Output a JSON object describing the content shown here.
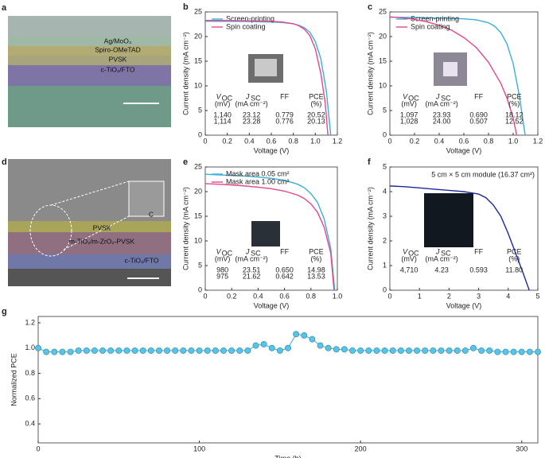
{
  "images": [
    {
      "letter": "a",
      "labels": [
        "Ag/MoO₃",
        "Spiro-OMeTAD",
        "PVSK",
        "c-TiO₂/FTO"
      ]
    },
    {
      "letter": "d",
      "labels": [
        "C",
        "PVSK",
        "m-TiO₂/m-ZrO₂-PVSK",
        "c-TiO₂/FTO"
      ]
    }
  ],
  "chart_data": [
    {
      "letter": "b",
      "type": "line",
      "xlabel": "Voltage (V)",
      "ylabel": "Current density (mA cm⁻²)",
      "xlim": [
        0,
        1.2
      ],
      "ylim": [
        0,
        25
      ],
      "xticks": [
        0,
        0.2,
        0.4,
        0.6,
        0.8,
        {
          "value": 1,
          "label": "1.0"
        },
        1.2
      ],
      "yticks": [
        0,
        5,
        10,
        15,
        20,
        25
      ],
      "series": [
        {
          "name": "Screen-printing",
          "color": "#3ab0d9",
          "x": [
            0,
            0.1,
            0.2,
            0.3,
            0.4,
            0.5,
            0.6,
            0.7,
            0.8,
            0.85,
            0.9,
            0.95,
            1.0,
            1.05,
            1.1,
            1.14
          ],
          "values": [
            23.12,
            23.1,
            23.1,
            23.08,
            23.05,
            23.0,
            22.95,
            22.85,
            22.6,
            22.3,
            21.8,
            20.9,
            19.0,
            15.5,
            9,
            0
          ]
        },
        {
          "name": "Spin coating",
          "color": "#e5468e",
          "x": [
            0,
            0.1,
            0.2,
            0.3,
            0.4,
            0.5,
            0.6,
            0.7,
            0.8,
            0.85,
            0.9,
            0.95,
            1.0,
            1.05,
            1.09,
            1.114
          ],
          "values": [
            23.28,
            23.27,
            23.25,
            23.22,
            23.2,
            23.15,
            23.1,
            22.95,
            22.6,
            22.2,
            21.5,
            20.2,
            17.5,
            12.5,
            6.5,
            0
          ]
        }
      ],
      "table": {
        "columns": [
          {
            "name": "V",
            "sub": "OC",
            "unit": "(mV)"
          },
          {
            "name": "J",
            "sub": "SC",
            "unit": "(mA cm⁻²)"
          },
          {
            "name": "FF"
          },
          {
            "name": "PCE",
            "unit": "(%)"
          }
        ],
        "rows": [
          {
            "color": "#3ab0d9",
            "cells": [
              "1,140",
              "23.12",
              "0.779",
              "20.52"
            ]
          },
          {
            "color": "#e5468e",
            "cells": [
              "1,114",
              "23.28",
              "0.776",
              "20.13"
            ]
          }
        ]
      }
    },
    {
      "letter": "c",
      "type": "line",
      "xlabel": "Voltage (V)",
      "ylabel": "Current density (mA cm⁻²)",
      "xlim": [
        0,
        1.2
      ],
      "ylim": [
        0,
        25
      ],
      "xticks": [
        0,
        0.2,
        0.4,
        0.6,
        0.8,
        {
          "value": 1,
          "label": "1.0"
        },
        1.2
      ],
      "yticks": [
        0,
        5,
        10,
        15,
        20,
        25
      ],
      "series": [
        {
          "name": "Screen-printing",
          "color": "#3ab0d9",
          "x": [
            0,
            0.1,
            0.2,
            0.3,
            0.4,
            0.5,
            0.6,
            0.7,
            0.8,
            0.85,
            0.9,
            0.95,
            1.0,
            1.05,
            1.097
          ],
          "values": [
            23.93,
            23.9,
            23.85,
            23.8,
            23.75,
            23.7,
            23.6,
            23.4,
            22.8,
            22.1,
            20.8,
            18.5,
            14.5,
            8,
            0
          ]
        },
        {
          "name": "Spin coating",
          "color": "#e5468e",
          "x": [
            0,
            0.1,
            0.2,
            0.3,
            0.4,
            0.5,
            0.6,
            0.7,
            0.8,
            0.9,
            0.95,
            1.0,
            1.028
          ],
          "values": [
            24.0,
            23.8,
            23.5,
            23.0,
            22.3,
            21.3,
            19.8,
            17.8,
            14.8,
            10.5,
            7.5,
            3.5,
            0
          ]
        }
      ],
      "table": {
        "columns": [
          {
            "name": "V",
            "sub": "OC",
            "unit": "(mV)"
          },
          {
            "name": "J",
            "sub": "SC",
            "unit": "(mA cm⁻²)"
          },
          {
            "name": "FF"
          },
          {
            "name": "PCE",
            "unit": "(%)"
          }
        ],
        "rows": [
          {
            "color": "#3ab0d9",
            "cells": [
              "1,097",
              "23.93",
              "0.690",
              "18.12"
            ]
          },
          {
            "color": "#e5468e",
            "cells": [
              "1,028",
              "24.00",
              "0.507",
              "12.52"
            ]
          }
        ]
      }
    },
    {
      "letter": "e",
      "type": "line",
      "xlabel": "Voltage (V)",
      "ylabel": "Current density (mA cm⁻²)",
      "xlim": [
        0,
        1.0
      ],
      "ylim": [
        0,
        25
      ],
      "xticks": [
        0,
        0.2,
        0.4,
        0.6,
        0.8,
        {
          "value": 1,
          "label": "1.0"
        }
      ],
      "yticks": [
        0,
        5,
        10,
        15,
        20,
        25
      ],
      "series": [
        {
          "name": "Mask area 0.05 cm²",
          "color": "#3ab0d9",
          "x": [
            0,
            0.1,
            0.2,
            0.3,
            0.4,
            0.5,
            0.6,
            0.7,
            0.75,
            0.8,
            0.85,
            0.9,
            0.95,
            0.98
          ],
          "values": [
            23.51,
            23.4,
            23.3,
            23.15,
            22.95,
            22.7,
            22.3,
            21.5,
            20.8,
            19.6,
            17.8,
            14.5,
            8.5,
            0
          ]
        },
        {
          "name": "Mask area 1.00 cm²",
          "color": "#e5468e",
          "x": [
            0,
            0.1,
            0.2,
            0.3,
            0.4,
            0.5,
            0.6,
            0.7,
            0.75,
            0.8,
            0.85,
            0.9,
            0.95,
            0.975
          ],
          "values": [
            21.62,
            21.5,
            21.35,
            21.15,
            20.9,
            20.6,
            20.1,
            19.3,
            18.6,
            17.5,
            15.8,
            12.8,
            7.5,
            0
          ]
        }
      ],
      "table": {
        "columns": [
          {
            "name": "V",
            "sub": "OC",
            "unit": "(mV)"
          },
          {
            "name": "J",
            "sub": "SC",
            "unit": "(mA cm⁻²)"
          },
          {
            "name": "FF"
          },
          {
            "name": "PCE",
            "unit": "(%)"
          }
        ],
        "rows": [
          {
            "color": "#3ab0d9",
            "cells": [
              "980",
              "23.51",
              "0.650",
              "14.98"
            ]
          },
          {
            "color": "#e5468e",
            "cells": [
              "975",
              "21.62",
              "0.642",
              "13.53"
            ]
          }
        ]
      }
    },
    {
      "letter": "f",
      "type": "line",
      "xlabel": "Voltage (V)",
      "ylabel": "Current density (mA cm⁻²)",
      "annotation": "5 cm × 5 cm module (16.37 cm²)",
      "xlim": [
        0,
        5
      ],
      "ylim": [
        0,
        5
      ],
      "xticks": [
        0,
        1,
        2,
        3,
        4,
        5
      ],
      "yticks": [
        0,
        1,
        2,
        3,
        4,
        5
      ],
      "series": [
        {
          "color": "#1c2a9a",
          "x": [
            0,
            0.5,
            1,
            1.5,
            2,
            2.5,
            3,
            3.25,
            3.5,
            3.75,
            4,
            4.25,
            4.5,
            4.71
          ],
          "values": [
            4.23,
            4.2,
            4.15,
            4.1,
            4.05,
            4.0,
            3.9,
            3.75,
            3.45,
            3.0,
            2.3,
            1.5,
            0.7,
            0
          ]
        }
      ],
      "table": {
        "columns": [
          {
            "name": "V",
            "sub": "OC",
            "unit": "(mV)"
          },
          {
            "name": "J",
            "sub": "SC",
            "unit": "(mA cm⁻²)"
          },
          {
            "name": "FF"
          },
          {
            "name": "PCE",
            "unit": "(%)"
          }
        ],
        "rows": [
          {
            "color": "#1c2a9a",
            "cells": [
              "4,710",
              "4.23",
              "0.593",
              "11.80"
            ]
          }
        ]
      }
    },
    {
      "letter": "g",
      "type": "scatter",
      "xlabel": "Time (h)",
      "ylabel": "Normalized PCE",
      "xlim": [
        0,
        310
      ],
      "ylim": [
        0.25,
        1.25
      ],
      "xticks": [
        0,
        100,
        200,
        300
      ],
      "yticks": [
        0.4,
        0.6,
        0.8,
        {
          "value": 1,
          "label": "1.0"
        },
        1.2
      ],
      "series": [
        {
          "color": "#5bc4e6",
          "x": [
            0,
            5,
            10,
            15,
            20,
            25,
            30,
            35,
            40,
            45,
            50,
            55,
            60,
            65,
            70,
            75,
            80,
            85,
            90,
            95,
            100,
            105,
            110,
            115,
            120,
            125,
            130,
            135,
            140,
            145,
            150,
            155,
            160,
            165,
            170,
            175,
            180,
            185,
            190,
            195,
            200,
            205,
            210,
            215,
            220,
            225,
            230,
            235,
            240,
            245,
            250,
            255,
            260,
            265,
            270,
            275,
            280,
            285,
            290,
            295,
            300,
            305,
            310
          ],
          "values": [
            1.0,
            0.97,
            0.97,
            0.97,
            0.97,
            0.98,
            0.98,
            0.98,
            0.98,
            0.98,
            0.98,
            0.98,
            0.98,
            0.98,
            0.98,
            0.98,
            0.98,
            0.98,
            0.98,
            0.98,
            0.98,
            0.98,
            0.98,
            0.98,
            0.98,
            0.98,
            0.98,
            1.02,
            1.03,
            1.0,
            0.98,
            1.0,
            1.11,
            1.1,
            1.07,
            1.02,
            1.0,
            0.99,
            0.99,
            0.98,
            0.98,
            0.98,
            0.98,
            0.98,
            0.98,
            0.98,
            0.98,
            0.98,
            0.98,
            0.98,
            0.98,
            0.98,
            0.98,
            0.98,
            1.0,
            0.98,
            0.98,
            0.97,
            0.97,
            0.97,
            0.97,
            0.97,
            0.97
          ]
        }
      ]
    }
  ]
}
